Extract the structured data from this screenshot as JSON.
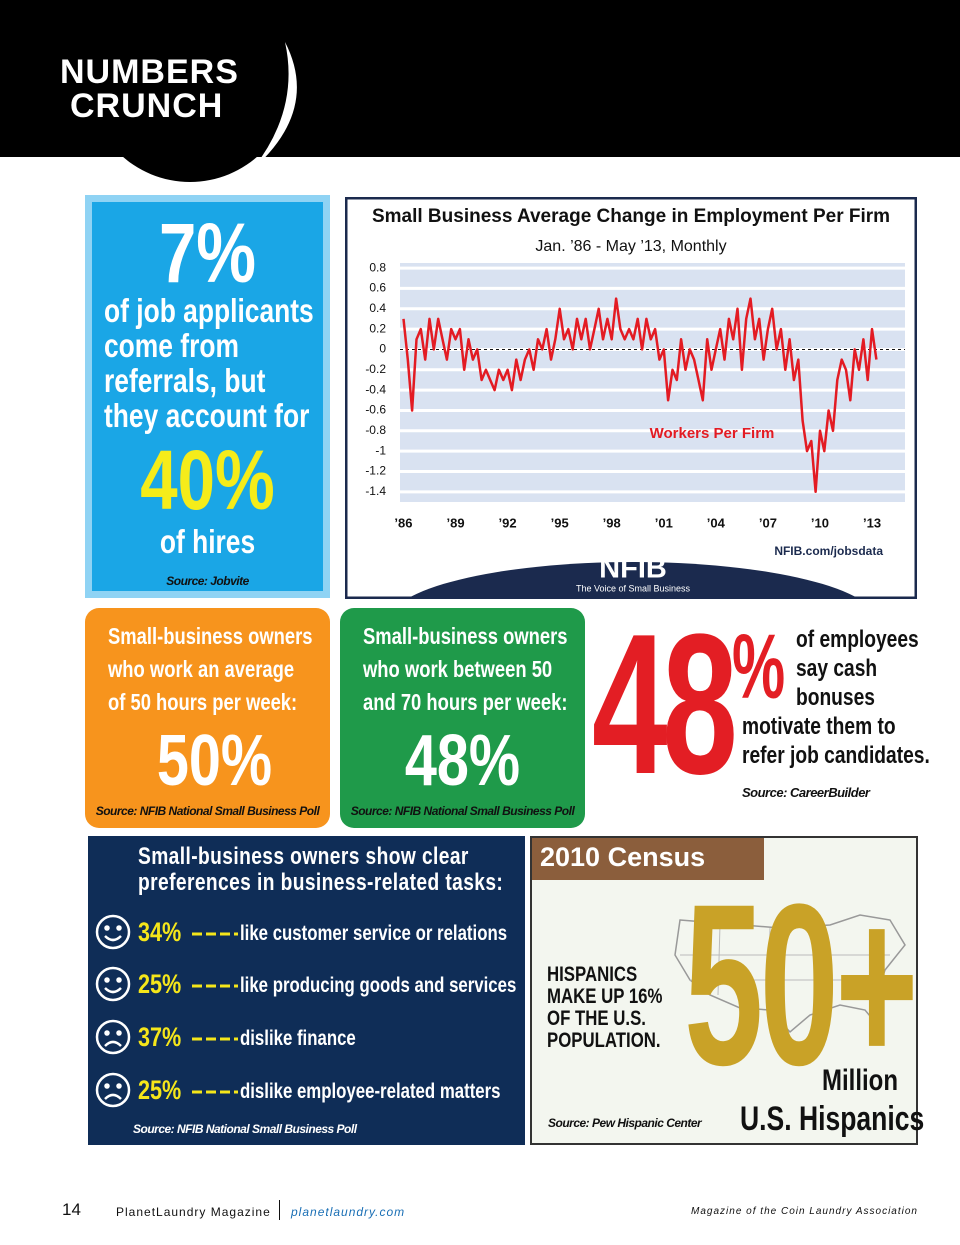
{
  "header": {
    "line1": "NUMBERS",
    "line2": "CRUNCH"
  },
  "referrals": {
    "stat": "7%",
    "lines": [
      "of job applicants",
      "come from",
      "referrals, but",
      "they account for"
    ],
    "stat2": "40%",
    "line_after": "of hires",
    "source": "Source: Jobvite"
  },
  "chart_data": {
    "type": "line",
    "title": "Small Business Average Change in Employment Per Firm",
    "subtitle": "Jan. ’86 - May ’13, Monthly",
    "x": [
      1986,
      1986.25,
      1986.5,
      1986.75,
      1987,
      1987.25,
      1987.5,
      1987.75,
      1988,
      1988.25,
      1988.5,
      1988.75,
      1989,
      1989.25,
      1989.5,
      1989.75,
      1990,
      1990.25,
      1990.5,
      1990.75,
      1991,
      1991.25,
      1991.5,
      1991.75,
      1992,
      1992.25,
      1992.5,
      1992.75,
      1993,
      1993.25,
      1993.5,
      1993.75,
      1994,
      1994.25,
      1994.5,
      1994.75,
      1995,
      1995.25,
      1995.5,
      1995.75,
      1996,
      1996.25,
      1996.5,
      1996.75,
      1997,
      1997.25,
      1997.5,
      1997.75,
      1998,
      1998.25,
      1998.5,
      1998.75,
      1999,
      1999.25,
      1999.5,
      1999.75,
      2000,
      2000.25,
      2000.5,
      2000.75,
      2001,
      2001.25,
      2001.5,
      2001.75,
      2002,
      2002.25,
      2002.5,
      2002.75,
      2003,
      2003.25,
      2003.5,
      2003.75,
      2004,
      2004.25,
      2004.5,
      2004.75,
      2005,
      2005.25,
      2005.5,
      2005.75,
      2006,
      2006.25,
      2006.5,
      2006.75,
      2007,
      2007.25,
      2007.5,
      2007.75,
      2008,
      2008.25,
      2008.5,
      2008.75,
      2009,
      2009.25,
      2009.5,
      2009.75,
      2010,
      2010.25,
      2010.5,
      2010.75,
      2011,
      2011.25,
      2011.5,
      2011.75,
      2012,
      2012.25,
      2012.5,
      2012.75,
      2013,
      2013.25
    ],
    "series": [
      {
        "name": "Workers Per Firm",
        "color": "#e31b23",
        "values": [
          0.3,
          -0.1,
          -0.6,
          0.1,
          0.2,
          -0.1,
          0.3,
          0,
          0.3,
          0.1,
          -0.1,
          0.2,
          0.1,
          0.2,
          -0.2,
          0.1,
          -0.1,
          0,
          -0.3,
          -0.2,
          -0.3,
          -0.4,
          -0.2,
          -0.3,
          -0.2,
          -0.4,
          -0.1,
          -0.3,
          -0.1,
          0,
          -0.2,
          0.1,
          0,
          0.2,
          -0.1,
          0.1,
          0.4,
          0.1,
          0.2,
          0,
          0.3,
          0.1,
          0.3,
          0,
          0.2,
          0.4,
          0.1,
          0.3,
          0.1,
          0.5,
          0.2,
          0.1,
          0.2,
          0.1,
          0.3,
          0,
          0.3,
          0.1,
          0.2,
          -0.1,
          0,
          -0.5,
          -0.2,
          -0.3,
          0.1,
          -0.2,
          0,
          -0.1,
          -0.3,
          -0.5,
          0.1,
          -0.2,
          0,
          0.2,
          -0.1,
          0.3,
          0.1,
          0.4,
          -0.2,
          0.3,
          0.5,
          0.1,
          0.3,
          -0.1,
          0.2,
          0.4,
          0,
          0.2,
          -0.2,
          0.1,
          -0.3,
          -0.1,
          -0.7,
          -1,
          -0.9,
          -1.4,
          -0.8,
          -1,
          -0.6,
          -0.8,
          -0.3,
          -0.1,
          -0.2,
          -0.5,
          0,
          -0.2,
          0.1,
          -0.3,
          0.2,
          -0.1
        ]
      }
    ],
    "xlim": [
      1985.8,
      2014.9
    ],
    "xticks": [
      {
        "value": 1986,
        "label": "’86"
      },
      {
        "value": 1989,
        "label": "’89"
      },
      {
        "value": 1992,
        "label": "’92"
      },
      {
        "value": 1995,
        "label": "’95"
      },
      {
        "value": 1998,
        "label": "’98"
      },
      {
        "value": 2001,
        "label": "’01"
      },
      {
        "value": 2004,
        "label": "’04"
      },
      {
        "value": 2007,
        "label": "’07"
      },
      {
        "value": 2010,
        "label": "’10"
      },
      {
        "value": 2013,
        "label": "’13"
      }
    ],
    "ylim": [
      -1.5,
      0.85
    ],
    "yticks": [
      0.8,
      0.6,
      0.4,
      0.2,
      0,
      -0.2,
      -0.4,
      -0.6,
      -0.8,
      -1,
      -1.2,
      -1.4
    ],
    "grid": true,
    "source": "NFIB.com/jobsdata",
    "logo": "NFIB",
    "tagline": "The Voice of Small Business"
  },
  "hours_50": {
    "lines": [
      "Small-business owners",
      "who work an average",
      "of 50 hours per week:"
    ],
    "stat": "50%",
    "source": "Source: NFIB National Small Business Poll"
  },
  "hours_50_70": {
    "lines": [
      "Small-business owners",
      "who work between 50",
      "and 70 hours per week:"
    ],
    "stat": "48%",
    "source": "Source: NFIB National Small Business Poll"
  },
  "cash_bonus": {
    "number": "48",
    "symbol": "%",
    "lines": [
      "of employees",
      "say cash",
      "bonuses",
      "motivate them to",
      "refer job candidates."
    ],
    "source": "Source: CareerBuilder"
  },
  "tasks": {
    "title": [
      "Small-business owners show clear",
      "preferences in business-related tasks:"
    ],
    "items": [
      {
        "pct": "34%",
        "text": "like customer service or relations"
      },
      {
        "pct": "25%",
        "text": "like producing goods and services"
      },
      {
        "pct": "37%",
        "text": "dislike finance"
      },
      {
        "pct": "25%",
        "text": "dislike employee-related matters"
      }
    ],
    "source": "Source: NFIB National Small Business Poll"
  },
  "census": {
    "title": "2010 Census",
    "lines": [
      "HISPANICS",
      "MAKE UP 16%",
      "OF THE U.S.",
      "POPULATION."
    ],
    "big": "50+",
    "unit": "Million",
    "label": "U.S. Hispanics",
    "source": "Source: Pew Hispanic Center"
  },
  "footer": {
    "page": "14",
    "magazine": "PlanetLaundry Magazine",
    "url": "planetlaundry.com",
    "tagline": "Magazine of the Coin Laundry Association"
  }
}
